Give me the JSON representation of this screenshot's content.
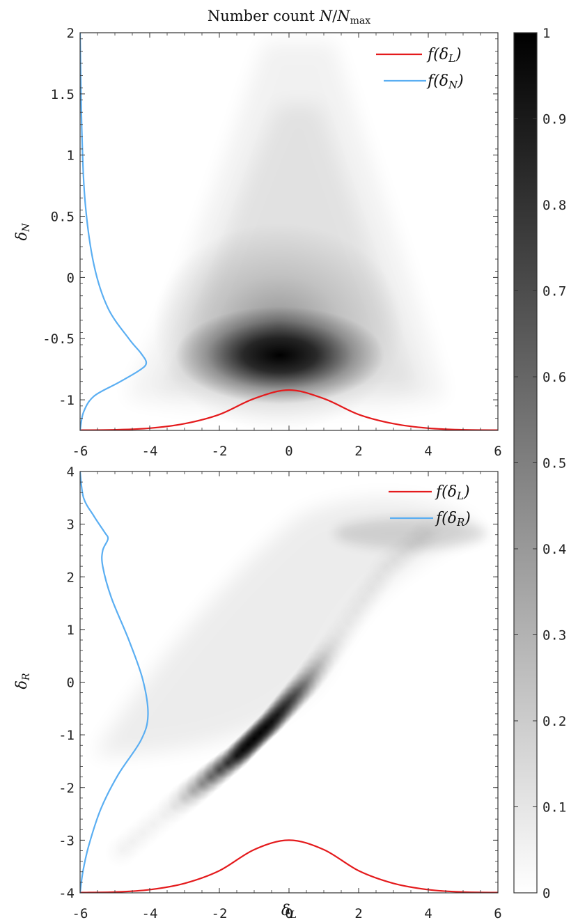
{
  "chart_data": [
    {
      "id": "top",
      "type": "heatmap",
      "title": "Number count N/N_max",
      "xlabel": "",
      "ylabel": "δ_N",
      "xlim": [
        -6,
        6
      ],
      "ylim": [
        -1.25,
        2
      ],
      "xticks": [
        -6,
        -4,
        -2,
        0,
        2,
        4,
        6
      ],
      "yticks": [
        -1,
        -0.5,
        0,
        0.5,
        1,
        1.5,
        2
      ],
      "xtick_labels": [
        "-6",
        "-4",
        "-2",
        "0",
        "2",
        "4",
        "6"
      ],
      "ytick_labels": [
        "-1",
        "-0.5",
        "0",
        "0.5",
        "1",
        "1.5",
        "2"
      ],
      "grid": false,
      "legend_position": "top-right",
      "density": {
        "peak": [
          -0.3,
          -0.7
        ],
        "description_value_range": [
          0,
          1
        ]
      },
      "series": [
        {
          "name": "f(δ_L)",
          "color": "#e41a1c",
          "points": [
            [
              -6,
              -1.248
            ],
            [
              -5,
              -1.245
            ],
            [
              -4,
              -1.232
            ],
            [
              -3,
              -1.195
            ],
            [
              -2,
              -1.12
            ],
            [
              -1,
              -0.99
            ],
            [
              0,
              -0.92
            ],
            [
              1,
              -0.99
            ],
            [
              2,
              -1.12
            ],
            [
              3,
              -1.195
            ],
            [
              4,
              -1.232
            ],
            [
              5,
              -1.245
            ],
            [
              6,
              -1.248
            ]
          ]
        },
        {
          "name": "f(δ_N)",
          "color": "#5aaef2",
          "points": [
            [
              -6.0,
              2.0
            ],
            [
              -5.95,
              1.2
            ],
            [
              -5.85,
              0.6
            ],
            [
              -5.6,
              0.1
            ],
            [
              -5.2,
              -0.25
            ],
            [
              -4.6,
              -0.5
            ],
            [
              -4.25,
              -0.62
            ],
            [
              -4.1,
              -0.7
            ],
            [
              -4.3,
              -0.76
            ],
            [
              -4.9,
              -0.86
            ],
            [
              -5.6,
              -0.97
            ],
            [
              -5.9,
              -1.1
            ],
            [
              -6.0,
              -1.25
            ]
          ]
        }
      ]
    },
    {
      "id": "bottom",
      "type": "heatmap",
      "title": "",
      "xlabel": "δ_L",
      "ylabel": "δ_R",
      "xlim": [
        -6,
        6
      ],
      "ylim": [
        -4,
        4
      ],
      "xticks": [
        -6,
        -4,
        -2,
        0,
        2,
        4,
        6
      ],
      "yticks": [
        -4,
        -3,
        -2,
        -1,
        0,
        1,
        2,
        3,
        4
      ],
      "xtick_labels": [
        "-6",
        "-4",
        "-2",
        "0",
        "2",
        "4",
        "6"
      ],
      "ytick_labels": [
        "-4",
        "-3",
        "-2",
        "-1",
        "0",
        "1",
        "2",
        "3",
        "4"
      ],
      "grid": false,
      "legend_position": "top-right",
      "density": {
        "ridge": [
          [
            -4.8,
            -3.2
          ],
          [
            -3.0,
            -2.2
          ],
          [
            -1.5,
            -1.4
          ],
          [
            -0.5,
            -0.75
          ],
          [
            0.5,
            0.0
          ],
          [
            1.5,
            0.9
          ],
          [
            2.8,
            2.2
          ],
          [
            4.2,
            2.95
          ]
        ],
        "peak": [
          -1.0,
          -1.0
        ]
      },
      "series": [
        {
          "name": "f(δ_L)",
          "color": "#e41a1c",
          "points": [
            [
              -6,
              -3.995
            ],
            [
              -5,
              -3.985
            ],
            [
              -4,
              -3.94
            ],
            [
              -3,
              -3.82
            ],
            [
              -2,
              -3.58
            ],
            [
              -1,
              -3.18
            ],
            [
              0,
              -3.0
            ],
            [
              1,
              -3.18
            ],
            [
              2,
              -3.58
            ],
            [
              3,
              -3.82
            ],
            [
              4,
              -3.94
            ],
            [
              5,
              -3.985
            ],
            [
              6,
              -3.995
            ]
          ]
        },
        {
          "name": "f(δ_R)",
          "color": "#5aaef2",
          "points": [
            [
              -6.0,
              4.0
            ],
            [
              -5.9,
              3.5
            ],
            [
              -5.6,
              3.15
            ],
            [
              -5.3,
              2.85
            ],
            [
              -5.2,
              2.72
            ],
            [
              -5.35,
              2.5
            ],
            [
              -5.35,
              2.2
            ],
            [
              -5.1,
              1.6
            ],
            [
              -4.6,
              0.8
            ],
            [
              -4.2,
              0.05
            ],
            [
              -4.05,
              -0.62
            ],
            [
              -4.25,
              -1.1
            ],
            [
              -4.9,
              -1.75
            ],
            [
              -5.4,
              -2.4
            ],
            [
              -5.75,
              -3.1
            ],
            [
              -5.92,
              -3.6
            ],
            [
              -6.0,
              -4.0
            ]
          ]
        }
      ]
    }
  ],
  "colorbar": {
    "range": [
      0,
      1
    ],
    "ticks": [
      0,
      0.1,
      0.2,
      0.3,
      0.4,
      0.5,
      0.6,
      0.7,
      0.8,
      0.9,
      1
    ],
    "tick_labels": [
      "0",
      "0.1",
      "0.2",
      "0.3",
      "0.4",
      "0.5",
      "0.6",
      "0.7",
      "0.8",
      "0.9",
      "1"
    ],
    "colormap": "gray-reversed"
  },
  "colors": {
    "red": "#e41a1c",
    "blue": "#5aaef2",
    "frame": "#333333"
  }
}
